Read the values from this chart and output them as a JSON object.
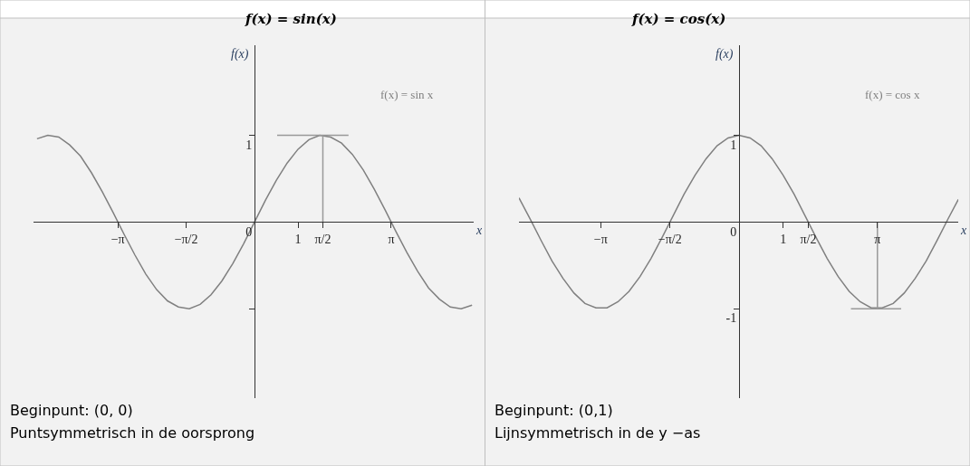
{
  "chart_data": [
    {
      "type": "line",
      "title": "f(x) = sin(x)",
      "xlabel": "x",
      "ylabel": "f(x)",
      "grid": false,
      "legend": false,
      "marker": "none",
      "line_style": "solid",
      "xlim": [
        -5.07,
        5.03
      ],
      "ylim": [
        -2.03,
        2.04
      ],
      "xticks": [
        {
          "value": -3.14159,
          "label": "−π"
        },
        {
          "value": -1.5708,
          "label": "−π/2"
        },
        1,
        {
          "value": 1.5708,
          "label": "π/2"
        },
        {
          "value": 3.14159,
          "label": "π"
        }
      ],
      "yticks": [
        1,
        0,
        {
          "value": -1,
          "label": null
        }
      ],
      "series": [
        {
          "name": "f(x) = sin x",
          "color": "#808080",
          "x": [
            -5,
            -4.75,
            -4.5,
            -4.25,
            -4,
            -3.75,
            -3.5,
            -3.25,
            -3,
            -2.75,
            -2.5,
            -2.25,
            -2,
            -1.75,
            -1.5,
            -1.25,
            -1,
            -0.75,
            -0.5,
            -0.25,
            0,
            0.25,
            0.5,
            0.75,
            1,
            1.25,
            1.5,
            1.75,
            2,
            2.25,
            2.5,
            2.75,
            3,
            3.25,
            3.5,
            3.75,
            4,
            4.25,
            4.5,
            4.75,
            5
          ],
          "values": [
            0.96,
            1.0,
            0.98,
            0.89,
            0.76,
            0.57,
            0.35,
            0.11,
            -0.14,
            -0.38,
            -0.6,
            -0.78,
            -0.91,
            -0.98,
            -1.0,
            -0.95,
            -0.84,
            -0.68,
            -0.48,
            -0.25,
            0,
            0.25,
            0.48,
            0.68,
            0.84,
            0.95,
            1.0,
            0.98,
            0.91,
            0.78,
            0.6,
            0.38,
            0.14,
            -0.11,
            -0.35,
            -0.57,
            -0.76,
            -0.89,
            -0.98,
            -1.0,
            -0.96
          ]
        },
        {
          "color": "#999999",
          "x": [
            0.52,
            2.16
          ],
          "values": [
            1,
            1
          ]
        },
        {
          "color": "#999999",
          "x": [
            1.5708,
            1.5708
          ],
          "values": [
            0,
            1
          ]
        }
      ],
      "annotations": [
        "Beginpunt: (0, 0)",
        "Puntsymmetrisch in de oorsprong"
      ]
    },
    {
      "type": "line",
      "title": "f(x) = cos(x)",
      "xlabel": "x",
      "ylabel": "f(x)",
      "grid": false,
      "legend": false,
      "marker": "none",
      "line_style": "solid",
      "xlim": [
        -5.0,
        4.98
      ],
      "ylim": [
        -2.03,
        2.04
      ],
      "xticks": [
        {
          "value": -3.14159,
          "label": "−π"
        },
        {
          "value": -1.5708,
          "label": "−π/2"
        },
        1,
        {
          "value": 1.5708,
          "label": "π/2"
        },
        {
          "value": 3.14159,
          "label": "π"
        }
      ],
      "yticks": [
        1,
        0,
        -1
      ],
      "series": [
        {
          "name": "f(x) = cos x",
          "color": "#808080",
          "x": [
            -5,
            -4.75,
            -4.5,
            -4.25,
            -4,
            -3.75,
            -3.5,
            -3.25,
            -3,
            -2.75,
            -2.5,
            -2.25,
            -2,
            -1.75,
            -1.5,
            -1.25,
            -1,
            -0.75,
            -0.5,
            -0.25,
            0,
            0.25,
            0.5,
            0.75,
            1,
            1.25,
            1.5,
            1.75,
            2,
            2.25,
            2.5,
            2.75,
            3,
            3.25,
            3.5,
            3.75,
            4,
            4.25,
            4.5,
            4.75,
            4.98
          ],
          "values": [
            0.28,
            0.04,
            -0.21,
            -0.45,
            -0.65,
            -0.82,
            -0.94,
            -0.99,
            -0.99,
            -0.92,
            -0.8,
            -0.63,
            -0.42,
            -0.18,
            0.07,
            0.32,
            0.54,
            0.73,
            0.88,
            0.97,
            1,
            0.97,
            0.88,
            0.73,
            0.54,
            0.32,
            0.07,
            -0.18,
            -0.42,
            -0.63,
            -0.8,
            -0.92,
            -0.99,
            -0.99,
            -0.94,
            -0.82,
            -0.65,
            -0.45,
            -0.21,
            0.04,
            0.26
          ]
        },
        {
          "color": "#999999",
          "x": [
            2.54,
            3.68
          ],
          "values": [
            -1,
            -1
          ]
        },
        {
          "color": "#999999",
          "x": [
            3.14159,
            3.14159
          ],
          "values": [
            0,
            -1
          ]
        }
      ],
      "annotations": [
        "Beginpunt: (0,1)",
        "Lijnsymmetrisch in de y −as"
      ]
    }
  ]
}
